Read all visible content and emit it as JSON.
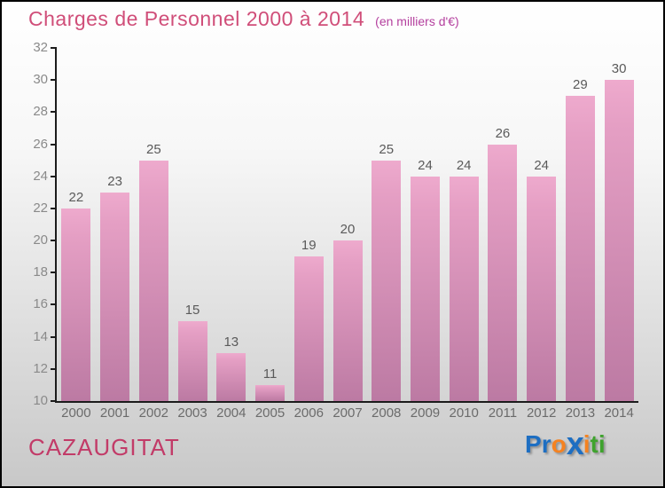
{
  "header": {
    "title": "Charges de Personnel 2000 à 2014",
    "subtitle": "(en milliers d'€)",
    "title_color": "#d04e79",
    "subtitle_color": "#b43f9e"
  },
  "footer": {
    "location": "CAZAUGITAT",
    "location_color": "#c23b68",
    "logo_text": "Proxiti",
    "logo_letters": [
      {
        "ch": "P",
        "color": "#1d6ec2",
        "heavy": false
      },
      {
        "ch": "r",
        "color": "#1d6ec2",
        "heavy": false
      },
      {
        "ch": "o",
        "color": "#f58220",
        "heavy": false
      },
      {
        "ch": "x",
        "color": "#1d6ec2",
        "heavy": true
      },
      {
        "ch": "i",
        "color": "#f58220",
        "heavy": false
      },
      {
        "ch": "t",
        "color": "#3fa32e",
        "heavy": false
      },
      {
        "ch": "i",
        "color": "#3fa32e",
        "heavy": false
      }
    ]
  },
  "chart_data": {
    "type": "bar",
    "title": "Charges de Personnel 2000 à 2014",
    "subtitle": "(en milliers d'€)",
    "categories": [
      "2000",
      "2001",
      "2002",
      "2003",
      "2004",
      "2005",
      "2006",
      "2007",
      "2008",
      "2009",
      "2010",
      "2011",
      "2012",
      "2013",
      "2014"
    ],
    "values": [
      22,
      23,
      25,
      15,
      13,
      11,
      19,
      20,
      25,
      24,
      24,
      26,
      24,
      29,
      30
    ],
    "ylim": [
      10,
      32
    ],
    "yticks": [
      10,
      12,
      14,
      16,
      18,
      20,
      22,
      24,
      26,
      28,
      30,
      32
    ],
    "grid": false,
    "legend": false,
    "bar_color_top": "#eeaacd",
    "bar_color_bottom": "#bc7aa3",
    "axis_color": "#1c1c1c",
    "value_label_color": "#5a5a5a",
    "tick_label_color": "#8a8a8a"
  }
}
